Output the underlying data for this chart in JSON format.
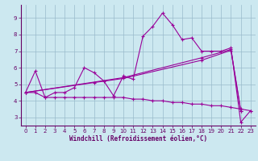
{
  "xlabel": "Windchill (Refroidissement éolien,°C)",
  "line_color": "#990099",
  "bg_color": "#cce8f0",
  "grid_color": "#99bbcc",
  "ylim": [
    2.5,
    9.8
  ],
  "xlim": [
    -0.5,
    23.5
  ],
  "yticks": [
    3,
    4,
    5,
    6,
    7,
    8,
    9
  ],
  "xticks": [
    0,
    1,
    2,
    3,
    4,
    5,
    6,
    7,
    8,
    9,
    10,
    11,
    12,
    13,
    14,
    15,
    16,
    17,
    18,
    19,
    20,
    21,
    22,
    23
  ],
  "x_main": [
    0,
    1,
    2,
    3,
    4,
    5,
    6,
    7,
    8,
    9,
    10,
    11,
    12,
    13,
    14,
    15,
    16,
    17,
    18,
    19,
    20,
    21,
    22,
    23
  ],
  "y_main": [
    4.5,
    5.8,
    4.2,
    4.5,
    4.5,
    4.8,
    6.0,
    5.7,
    5.2,
    4.3,
    5.5,
    5.3,
    7.9,
    8.5,
    9.3,
    8.6,
    7.7,
    7.8,
    7.0,
    7.0,
    7.0,
    7.2,
    2.7,
    3.4
  ],
  "x_low": [
    0,
    1,
    2,
    3,
    4,
    5,
    6,
    7,
    8,
    9,
    10,
    11,
    12,
    13,
    14,
    15,
    16,
    17,
    18,
    19,
    20,
    21,
    22,
    23
  ],
  "y_low": [
    4.5,
    4.5,
    4.2,
    4.2,
    4.2,
    4.2,
    4.2,
    4.2,
    4.2,
    4.2,
    4.2,
    4.1,
    4.1,
    4.0,
    4.0,
    3.9,
    3.9,
    3.8,
    3.8,
    3.7,
    3.7,
    3.6,
    3.5,
    3.4
  ],
  "x_mid": [
    0,
    7,
    10,
    18,
    21,
    22
  ],
  "y_mid": [
    4.5,
    5.1,
    5.35,
    6.45,
    7.05,
    3.4
  ],
  "x_hi": [
    0,
    10,
    18,
    21,
    22
  ],
  "y_hi": [
    4.5,
    5.4,
    6.6,
    7.1,
    3.4
  ]
}
